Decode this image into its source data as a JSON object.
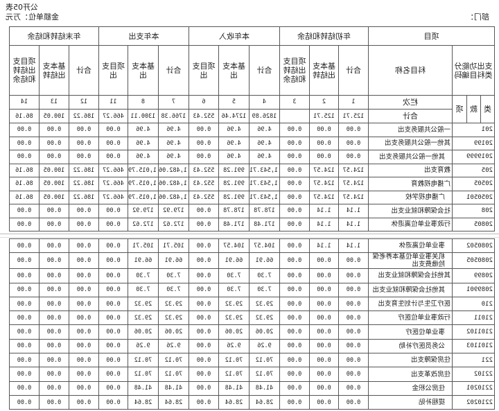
{
  "header": {
    "table_no": "公开05表",
    "unit": "金额单位：万元",
    "dept": "部门："
  },
  "columns": {
    "item": "项目",
    "code_head": "支出功能分类科目编码",
    "name_head": "科目名称",
    "group_begin": "年初结转和结余",
    "group_income": "本年收入",
    "group_expense": "本年支出",
    "group_end": "年末结转和结余",
    "sub": [
      "合计",
      "基本支出结转",
      "项目支出结转和结余",
      "合计",
      "基本支出",
      "项目支出",
      "合计",
      "基本支出",
      "项目支出",
      "合计",
      "基本支出结转",
      "项目支出结转和结余"
    ],
    "lei": "类",
    "kuan": "款",
    "xiang": "项",
    "lanci": "栏次",
    "col_numbers": [
      "1",
      "2",
      "3",
      "4",
      "5",
      "6",
      "7",
      "8",
      "11",
      "12",
      "13",
      "14"
    ]
  },
  "total": {
    "label": "合计",
    "values": [
      "125.71",
      "125.71",
      "",
      "1826.89",
      "1274.46",
      "552.43",
      "1766.38",
      "1300.11",
      "466.27",
      "186.22",
      "100.05",
      "86.16"
    ]
  },
  "rows_part1": [
    {
      "code": "201",
      "name": "一般公共服务支出",
      "level": 1,
      "values": [
        "0.00",
        "0.00",
        "0.00",
        "4.96",
        "4.96",
        "0.00",
        "4.96",
        "4.96",
        "0.00",
        "0.00",
        "0.00",
        "0.00"
      ]
    },
    {
      "code": "20199",
      "name": "其他一般公共服务支出",
      "level": 2,
      "values": [
        "0.00",
        "0.00",
        "0.00",
        "4.96",
        "4.96",
        "0.00",
        "4.96",
        "4.96",
        "0.00",
        "0.00",
        "0.00",
        "0.00"
      ]
    },
    {
      "code": "2019999",
      "name": "其他一般公共服务支出",
      "level": 3,
      "values": [
        "0.00",
        "0.00",
        "0.00",
        "4.96",
        "4.96",
        "0.00",
        "4.96",
        "4.96",
        "0.00",
        "0.00",
        "0.00",
        "0.00"
      ]
    },
    {
      "code": "205",
      "name": "教育支出",
      "level": 1,
      "values": [
        "124.57",
        "124.57",
        "0.00",
        "1,543.71",
        "991.28",
        "552.43",
        "1,482.06",
        "1,015.79",
        "466.27",
        "186.22",
        "100.05",
        "86.16"
      ]
    },
    {
      "code": "20505",
      "name": "广播电视教育",
      "level": 2,
      "values": [
        "124.57",
        "124.57",
        "0.00",
        "1,543.71",
        "991.28",
        "552.43",
        "1,482.06",
        "1,015.79",
        "466.27",
        "186.22",
        "100.05",
        "86.16"
      ]
    },
    {
      "code": "2050501",
      "name": "广播电视学校",
      "level": 3,
      "values": [
        "124.57",
        "124.57",
        "0.00",
        "1,543.71",
        "991.28",
        "552.43",
        "1,482.06",
        "1,015.79",
        "466.27",
        "186.22",
        "100.05",
        "86.16"
      ]
    },
    {
      "code": "208",
      "name": "社会保障和就业支出",
      "level": 1,
      "values": [
        "1.14",
        "1.14",
        "0.00",
        "178.78",
        "178.78",
        "0.00",
        "179.92",
        "179.92",
        "0.00",
        "0.00",
        "0.00",
        "0.00"
      ]
    },
    {
      "code": "20805",
      "name": "行政事业单位离退休",
      "level": 2,
      "values": [
        "1.14",
        "1.14",
        "0.00",
        "171.48",
        "171.48",
        "0.00",
        "172.62",
        "172.62",
        "0.00",
        "0.00",
        "0.00",
        "0.00"
      ]
    }
  ],
  "rows_part2": [
    {
      "code": "2080502",
      "name": "事业单位离退休",
      "level": 3,
      "values": [
        "1.14",
        "1.14",
        "0.00",
        "104.57",
        "104.57",
        "0.00",
        "105.71",
        "105.71",
        "0.00",
        "0.00",
        "0.00",
        "0.00"
      ]
    },
    {
      "code": "2080505",
      "name": "机关事业单位基本养老保险缴费支出",
      "level": 3,
      "values": [
        "0.00",
        "0.00",
        "0.00",
        "66.91",
        "66.91",
        "0.00",
        "66.91",
        "66.91",
        "0.00",
        "0.00",
        "0.00",
        "0.00"
      ]
    },
    {
      "code": "20899",
      "name": "其他社会保障和就业支出",
      "level": 2,
      "values": [
        "0.00",
        "0.00",
        "0.00",
        "7.30",
        "7.30",
        "0.00",
        "7.30",
        "7.30",
        "0.00",
        "0.00",
        "0.00",
        "0.00"
      ]
    },
    {
      "code": "2089901",
      "name": "其他社会保障和就业支出",
      "level": 3,
      "values": [
        "0.00",
        "0.00",
        "0.00",
        "7.30",
        "7.30",
        "0.00",
        "7.30",
        "7.30",
        "0.00",
        "0.00",
        "0.00",
        "0.00"
      ]
    },
    {
      "code": "210",
      "name": "医疗卫生与计划生育支出",
      "level": 1,
      "values": [
        "0.00",
        "0.00",
        "0.00",
        "29.32",
        "29.32",
        "0.00",
        "29.32",
        "29.32",
        "0.00",
        "0.00",
        "0.00",
        "0.00"
      ]
    },
    {
      "code": "21011",
      "name": "行政事业单位医疗",
      "level": 2,
      "values": [
        "0.00",
        "0.00",
        "0.00",
        "29.32",
        "29.32",
        "0.00",
        "29.32",
        "29.32",
        "0.00",
        "0.00",
        "0.00",
        "0.00"
      ]
    },
    {
      "code": "2101102",
      "name": "事业单位医疗",
      "level": 3,
      "values": [
        "0.00",
        "0.00",
        "0.00",
        "20.06",
        "20.06",
        "0.00",
        "20.06",
        "20.06",
        "0.00",
        "0.00",
        "0.00",
        "0.00"
      ]
    },
    {
      "code": "2101103",
      "name": "公务员医疗补助",
      "level": 3,
      "values": [
        "0.00",
        "0.00",
        "0.00",
        "9.26",
        "9.26",
        "0.00",
        "9.26",
        "9.26",
        "0.00",
        "0.00",
        "0.00",
        "0.00"
      ]
    },
    {
      "code": "221",
      "name": "住房保障支出",
      "level": 1,
      "values": [
        "0.00",
        "0.00",
        "0.00",
        "70.12",
        "70.12",
        "0.00",
        "70.12",
        "70.12",
        "0.00",
        "0.00",
        "0.00",
        "0.00"
      ]
    },
    {
      "code": "22102",
      "name": "住房改革支出",
      "level": 2,
      "values": [
        "0.00",
        "0.00",
        "0.00",
        "70.12",
        "70.12",
        "0.00",
        "70.12",
        "70.12",
        "0.00",
        "0.00",
        "0.00",
        "0.00"
      ]
    },
    {
      "code": "2210201",
      "name": "住房公积金",
      "level": 3,
      "values": [
        "0.00",
        "0.00",
        "0.00",
        "41.48",
        "41.48",
        "0.00",
        "41.48",
        "41.48",
        "0.00",
        "0.00",
        "0.00",
        "0.00"
      ]
    },
    {
      "code": "2210202",
      "name": "提租补贴",
      "level": 3,
      "values": [
        "0.00",
        "0.00",
        "0.00",
        "28.64",
        "28.64",
        "0.00",
        "28.64",
        "28.64",
        "0.00",
        "0.00",
        "0.00",
        "0.00"
      ]
    }
  ]
}
